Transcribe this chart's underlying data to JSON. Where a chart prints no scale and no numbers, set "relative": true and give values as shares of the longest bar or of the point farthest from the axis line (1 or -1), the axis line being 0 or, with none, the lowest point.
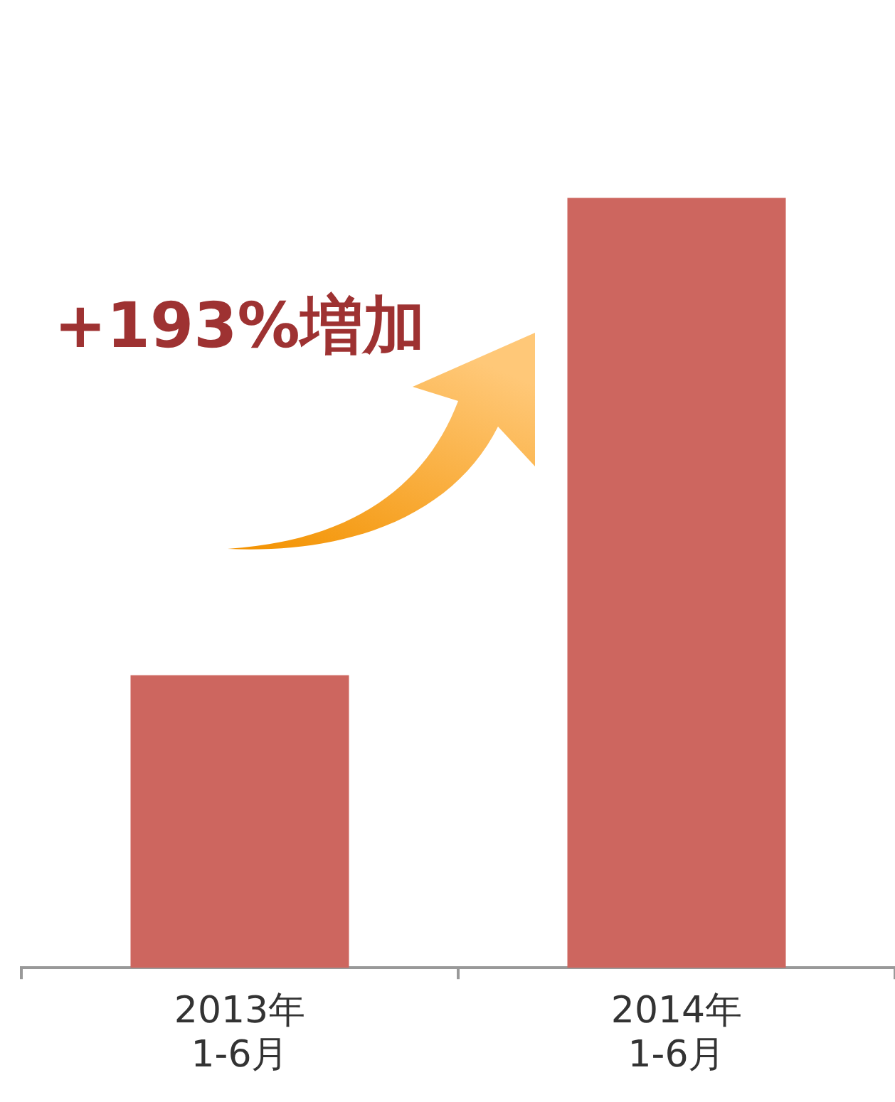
{
  "chart_data": {
    "type": "bar",
    "relative": true,
    "categories": [
      "2013年\n1-6月",
      "2014年\n1-6月"
    ],
    "values": [
      0.38,
      1
    ],
    "color": "#cd665f",
    "annotations": [
      "+193%増加"
    ],
    "grid": false,
    "legend": false
  }
}
